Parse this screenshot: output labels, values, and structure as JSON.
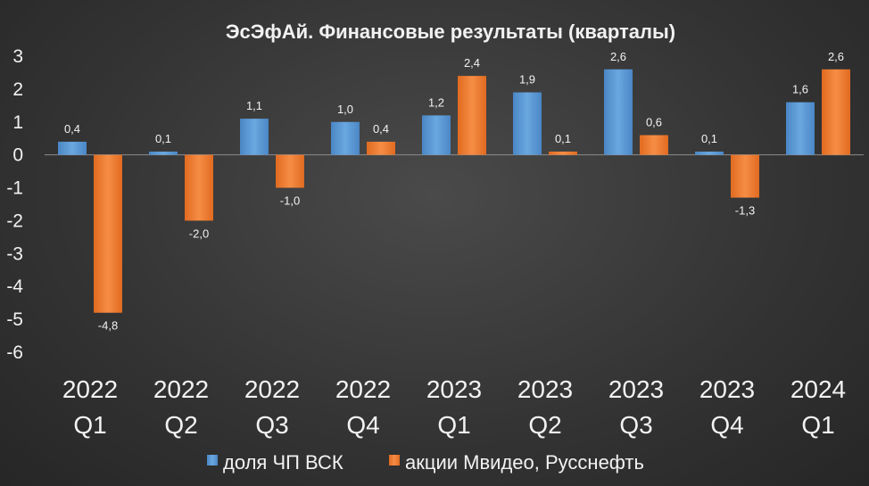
{
  "chart_data": {
    "type": "bar",
    "title": "ЭсЭфАй. Финансовые результаты (кварталы)",
    "xlabel": "",
    "ylabel": "",
    "ylim": [
      -6,
      3
    ],
    "yticks": [
      "3",
      "2",
      "1",
      "0",
      "-1",
      "-2",
      "-3",
      "-4",
      "-5",
      "-6"
    ],
    "ytick_values": [
      3,
      2,
      1,
      0,
      -1,
      -2,
      -3,
      -4,
      -5,
      -6
    ],
    "categories": [
      {
        "year": "2022",
        "quarter": "Q1"
      },
      {
        "year": "2022",
        "quarter": "Q2"
      },
      {
        "year": "2022",
        "quarter": "Q3"
      },
      {
        "year": "2022",
        "quarter": "Q4"
      },
      {
        "year": "2023",
        "quarter": "Q1"
      },
      {
        "year": "2023",
        "quarter": "Q2"
      },
      {
        "year": "2023",
        "quarter": "Q3"
      },
      {
        "year": "2023",
        "quarter": "Q4"
      },
      {
        "year": "2024",
        "quarter": "Q1"
      }
    ],
    "series": [
      {
        "name": "доля ЧП ВСК",
        "color": "#5b9bd5",
        "values": [
          0.4,
          0.1,
          1.1,
          1.0,
          1.2,
          1.9,
          2.6,
          0.1,
          1.6
        ],
        "labels": [
          "0,4",
          "0,1",
          "1,1",
          "1,0",
          "1,2",
          "1,9",
          "2,6",
          "0,1",
          "1,6"
        ]
      },
      {
        "name": "акции Мвидео, Русснефть",
        "color": "#ed7d31",
        "values": [
          -4.8,
          -2.0,
          -1.0,
          0.4,
          2.4,
          0.1,
          0.6,
          -1.3,
          2.6
        ],
        "labels": [
          "-4,8",
          "-2,0",
          "-1,0",
          "0,4",
          "2,4",
          "0,1",
          "0,6",
          "-1,3",
          "2,6"
        ]
      }
    ],
    "grid": false,
    "legend_position": "bottom"
  }
}
